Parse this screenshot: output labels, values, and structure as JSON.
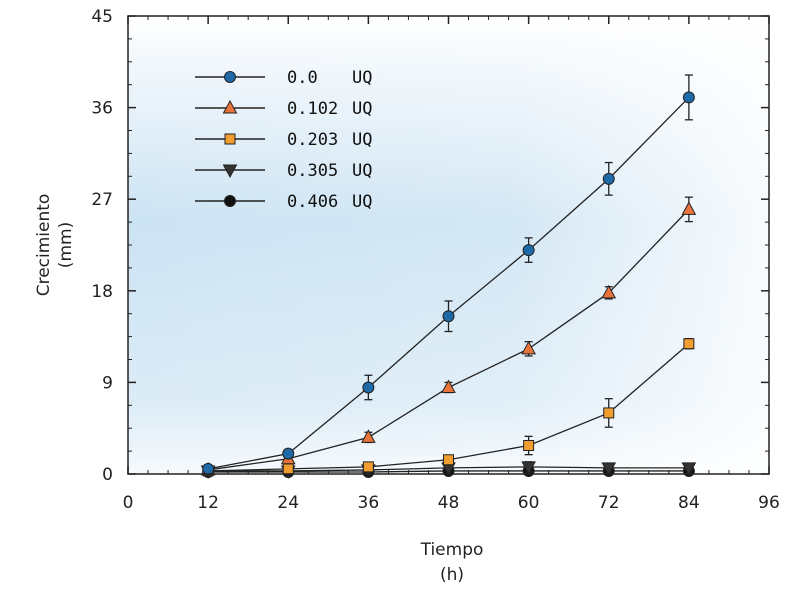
{
  "chart_data": {
    "type": "line",
    "xlabel": [
      "Tiempo",
      "(h)"
    ],
    "ylabel": [
      "Crecimiento",
      "(mm)"
    ],
    "xlim": [
      0,
      96
    ],
    "ylim": [
      0,
      45
    ],
    "xticks": [
      "0",
      "12",
      "24",
      "36",
      "48",
      "60",
      "72",
      "84",
      "96"
    ],
    "yticks": [
      "0",
      "9",
      "18",
      "27",
      "36",
      "45"
    ],
    "xtick_values": [
      0,
      12,
      24,
      36,
      48,
      60,
      72,
      84,
      96
    ],
    "ytick_values": [
      0,
      9,
      18,
      27,
      36,
      45
    ],
    "grid": false,
    "legend_position": "top-left",
    "series": [
      {
        "name": "0.0",
        "unit": "UQ",
        "marker": "circle",
        "color": "#1e6aa8",
        "x": [
          12,
          24,
          36,
          48,
          60,
          72,
          84
        ],
        "y": [
          0.5,
          2.0,
          8.5,
          15.5,
          22.0,
          29.0,
          37.0
        ],
        "err": [
          0.2,
          0.3,
          1.2,
          1.5,
          1.2,
          1.6,
          2.2
        ]
      },
      {
        "name": "0.102",
        "unit": "UQ",
        "marker": "triangle-up",
        "color": "#e8743b",
        "x": [
          12,
          24,
          36,
          48,
          60,
          72,
          84
        ],
        "y": [
          0.4,
          1.5,
          3.6,
          8.5,
          12.3,
          17.8,
          26.0
        ],
        "err": [
          0.2,
          0.2,
          0.5,
          0.5,
          0.7,
          0.6,
          1.2
        ]
      },
      {
        "name": "0.203",
        "unit": "UQ",
        "marker": "square",
        "color": "#f29d2f",
        "x": [
          12,
          24,
          36,
          48,
          60,
          72,
          84
        ],
        "y": [
          0.3,
          0.5,
          0.7,
          1.4,
          2.8,
          6.0,
          12.8
        ],
        "err": [
          0.1,
          0.1,
          0.2,
          0.4,
          0.9,
          1.4,
          0.5
        ]
      },
      {
        "name": "0.305",
        "unit": "UQ",
        "marker": "triangle-down",
        "color": "#333333",
        "x": [
          12,
          24,
          36,
          48,
          60,
          72,
          84
        ],
        "y": [
          0.3,
          0.3,
          0.4,
          0.6,
          0.7,
          0.6,
          0.6
        ],
        "err": [
          0.1,
          0.1,
          0.1,
          0.2,
          0.5,
          0.2,
          0.2
        ]
      },
      {
        "name": "0.406",
        "unit": "UQ",
        "marker": "circle",
        "color": "#111111",
        "x": [
          12,
          24,
          36,
          48,
          60,
          72,
          84
        ],
        "y": [
          0.2,
          0.2,
          0.2,
          0.3,
          0.3,
          0.3,
          0.3
        ],
        "err": [
          0.1,
          0.1,
          0.1,
          0.1,
          0.2,
          0.1,
          0.1
        ]
      }
    ]
  }
}
